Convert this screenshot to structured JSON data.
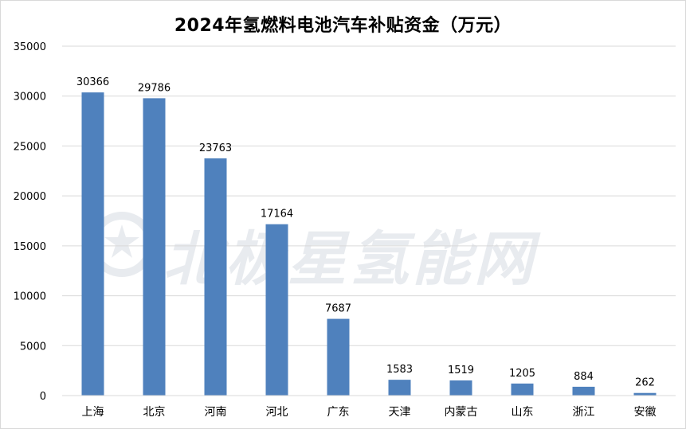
{
  "chart_data": {
    "type": "bar",
    "title": "2024年氢燃料电池汽车补贴资金（万元）",
    "xlabel": "",
    "ylabel": "",
    "categories": [
      "上海",
      "北京",
      "河南",
      "河北",
      "广东",
      "天津",
      "内蒙古",
      "山东",
      "浙江",
      "安徽"
    ],
    "values": [
      30366,
      29786,
      23763,
      17164,
      7687,
      1583,
      1519,
      1205,
      884,
      262
    ],
    "ylim": [
      0,
      35000
    ],
    "yticks": [
      0,
      5000,
      10000,
      15000,
      20000,
      25000,
      30000,
      35000
    ],
    "grid": true,
    "data_labels": true,
    "bar_color": "#4f81bd",
    "grid_color": "#d9d9d9"
  },
  "watermark": {
    "text": "北极星氢能网"
  }
}
